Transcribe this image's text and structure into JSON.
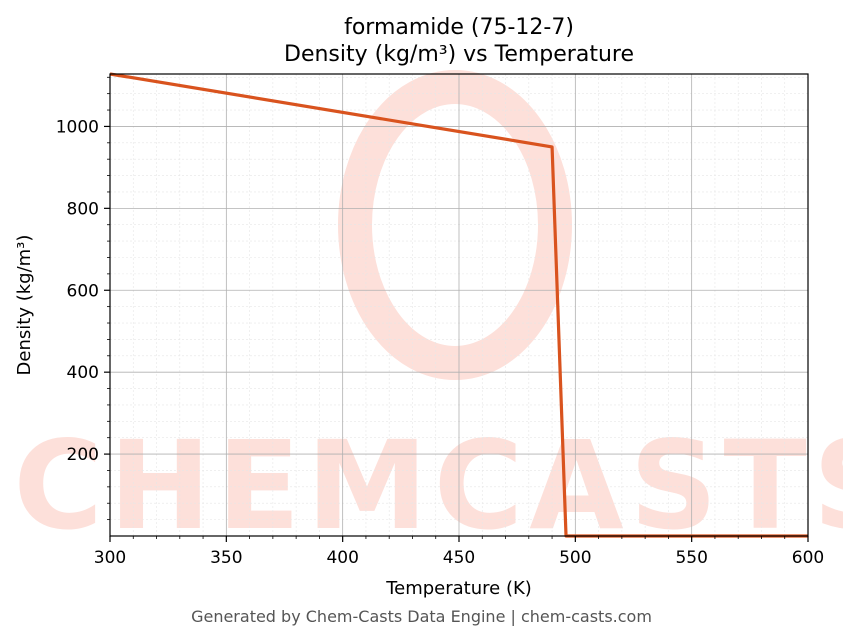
{
  "chart_data": {
    "type": "line",
    "title_line1": "formamide (75-12-7)",
    "title_line2": "Density (kg/m³) vs Temperature",
    "xlabel": "Temperature (K)",
    "ylabel": "Density (kg/m³)",
    "xlim": [
      300,
      600
    ],
    "ylim": [
      0,
      1128
    ],
    "x_ticks": [
      300,
      350,
      400,
      450,
      500,
      550,
      600
    ],
    "y_ticks": [
      200,
      400,
      600,
      800,
      1000
    ],
    "grid": true,
    "series": [
      {
        "color": "#d9531e",
        "x": [
          300,
          490,
          496,
          600
        ],
        "y": [
          1128,
          950,
          0,
          0
        ]
      }
    ]
  },
  "watermark": {
    "text": "CHEMCASTS",
    "color": "#fde0da"
  },
  "footer": "Generated by Chem-Casts Data Engine | chem-casts.com"
}
